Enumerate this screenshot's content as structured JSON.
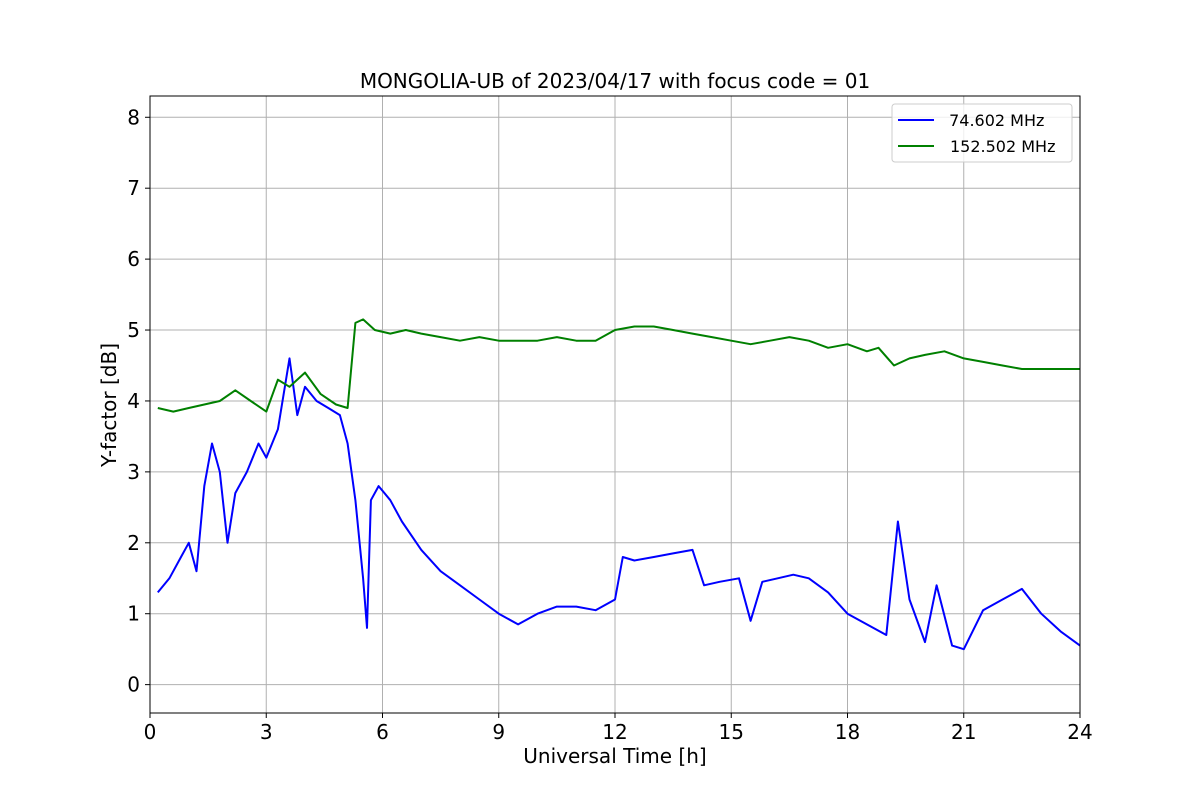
{
  "chart_data": {
    "type": "line",
    "title": "MONGOLIA-UB of 2023/04/17 with focus code = 01",
    "xlabel": "Universal Time [h]",
    "ylabel": "Y-factor [dB]",
    "xlim": [
      0,
      24
    ],
    "ylim": [
      -0.4,
      8.3
    ],
    "xticks": [
      0,
      3,
      6,
      9,
      12,
      15,
      18,
      21,
      24
    ],
    "xtick_labels": [
      "0",
      "3",
      "6",
      "9",
      "12",
      "15",
      "18",
      "21",
      "24"
    ],
    "yticks": [
      0,
      1,
      2,
      3,
      4,
      5,
      6,
      7,
      8
    ],
    "ytick_labels": [
      "0",
      "1",
      "2",
      "3",
      "4",
      "5",
      "6",
      "7",
      "8"
    ],
    "grid": true,
    "legend_position": "top-right",
    "series": [
      {
        "name": " 74.602 MHz",
        "color": "#0000ff",
        "x": [
          0.2,
          0.5,
          0.8,
          1.0,
          1.2,
          1.4,
          1.6,
          1.8,
          2.0,
          2.2,
          2.5,
          2.8,
          3.0,
          3.3,
          3.6,
          3.8,
          4.0,
          4.3,
          4.6,
          4.9,
          5.1,
          5.3,
          5.5,
          5.6,
          5.7,
          5.9,
          6.2,
          6.5,
          7.0,
          7.5,
          8.0,
          8.5,
          9.0,
          9.5,
          10.0,
          10.5,
          11.0,
          11.5,
          12.0,
          12.2,
          12.5,
          13.0,
          13.5,
          14.0,
          14.3,
          14.7,
          15.2,
          15.5,
          15.8,
          16.2,
          16.6,
          17.0,
          17.5,
          18.0,
          18.5,
          19.0,
          19.3,
          19.6,
          20.0,
          20.3,
          20.7,
          21.0,
          21.5,
          22.0,
          22.5,
          23.0,
          23.5,
          24.0
        ],
        "y": [
          1.3,
          1.5,
          1.8,
          2.0,
          1.6,
          2.8,
          3.4,
          3.0,
          2.0,
          2.7,
          3.0,
          3.4,
          3.2,
          3.6,
          4.6,
          3.8,
          4.2,
          4.0,
          3.9,
          3.8,
          3.4,
          2.6,
          1.5,
          0.8,
          2.6,
          2.8,
          2.6,
          2.3,
          1.9,
          1.6,
          1.4,
          1.2,
          1.0,
          0.85,
          1.0,
          1.1,
          1.1,
          1.05,
          1.2,
          1.8,
          1.75,
          1.8,
          1.85,
          1.9,
          1.4,
          1.45,
          1.5,
          0.9,
          1.45,
          1.5,
          1.55,
          1.5,
          1.3,
          1.0,
          0.85,
          0.7,
          2.3,
          1.2,
          0.6,
          1.4,
          0.55,
          0.5,
          1.05,
          1.2,
          1.35,
          1.0,
          0.75,
          0.55
        ]
      },
      {
        "name": "152.502 MHz",
        "color": "#008000",
        "x": [
          0.2,
          0.6,
          1.0,
          1.4,
          1.8,
          2.2,
          2.6,
          3.0,
          3.3,
          3.6,
          4.0,
          4.4,
          4.8,
          5.1,
          5.3,
          5.5,
          5.8,
          6.2,
          6.6,
          7.0,
          7.5,
          8.0,
          8.5,
          9.0,
          9.5,
          10.0,
          10.5,
          11.0,
          11.5,
          12.0,
          12.5,
          13.0,
          13.5,
          14.0,
          14.5,
          15.0,
          15.5,
          16.0,
          16.5,
          17.0,
          17.5,
          18.0,
          18.5,
          18.8,
          19.2,
          19.6,
          20.0,
          20.5,
          21.0,
          21.5,
          22.0,
          22.5,
          23.0,
          23.5,
          24.0
        ],
        "y": [
          3.9,
          3.85,
          3.9,
          3.95,
          4.0,
          4.15,
          4.0,
          3.85,
          4.3,
          4.2,
          4.4,
          4.1,
          3.95,
          3.9,
          5.1,
          5.15,
          5.0,
          4.95,
          5.0,
          4.95,
          4.9,
          4.85,
          4.9,
          4.85,
          4.85,
          4.85,
          4.9,
          4.85,
          4.85,
          5.0,
          5.05,
          5.05,
          5.0,
          4.95,
          4.9,
          4.85,
          4.8,
          4.85,
          4.9,
          4.85,
          4.75,
          4.8,
          4.7,
          4.75,
          4.5,
          4.6,
          4.65,
          4.7,
          4.6,
          4.55,
          4.5,
          4.45,
          4.45,
          4.45,
          4.45
        ]
      }
    ]
  }
}
